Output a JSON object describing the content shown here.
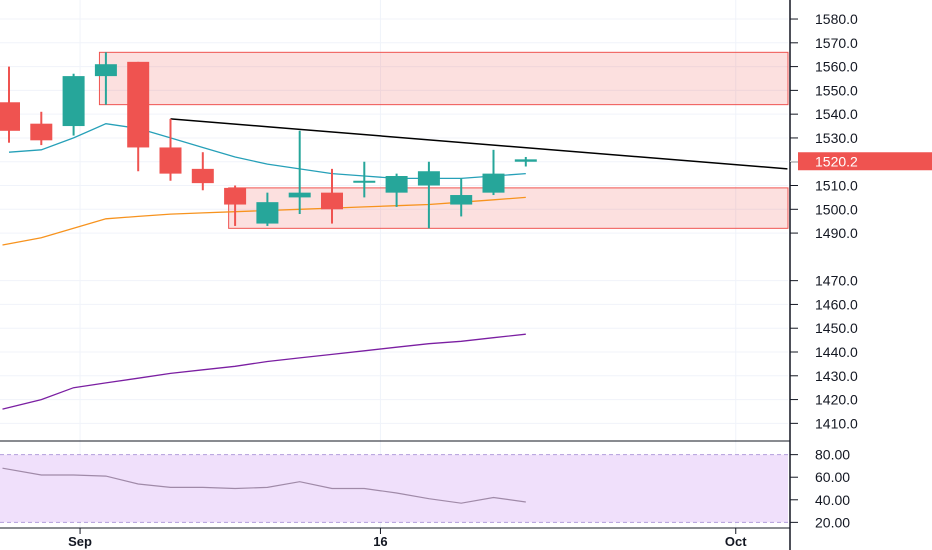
{
  "chart_data": [
    {
      "type": "candlestick",
      "title": "",
      "ylim": [
        1403,
        1588
      ],
      "y_ticks": [
        1410,
        1420,
        1430,
        1440,
        1450,
        1460,
        1470,
        1490,
        1500,
        1510,
        1520,
        1530,
        1540,
        1550,
        1560,
        1570,
        1580
      ],
      "y_tick_labels": [
        "1410.0",
        "1420.0",
        "1430.0",
        "1440.0",
        "1450.0",
        "1460.0",
        "1470.0",
        "1490.0",
        "1500.0",
        "1510.0",
        "1520.0",
        "1530.0",
        "1540.0",
        "1550.0",
        "1560.0",
        "1570.0",
        "1580.0"
      ],
      "x_labels": [
        {
          "slot": 2.2,
          "text": "Sep"
        },
        {
          "slot": 11.5,
          "text": "16"
        },
        {
          "slot": 22.5,
          "text": "Oct"
        }
      ],
      "current_price": {
        "value": 1520.2,
        "label": "1520.2"
      },
      "candles": [
        {
          "o": 1545,
          "h": 1560,
          "l": 1528,
          "c": 1533
        },
        {
          "o": 1536,
          "h": 1541,
          "l": 1527,
          "c": 1529
        },
        {
          "o": 1535,
          "h": 1557,
          "l": 1531,
          "c": 1556
        },
        {
          "o": 1556,
          "h": 1566,
          "l": 1544,
          "c": 1561
        },
        {
          "o": 1562,
          "h": 1562,
          "l": 1516,
          "c": 1526
        },
        {
          "o": 1526,
          "h": 1538,
          "l": 1512,
          "c": 1515
        },
        {
          "o": 1517,
          "h": 1524,
          "l": 1508,
          "c": 1511
        },
        {
          "o": 1509,
          "h": 1510,
          "l": 1493,
          "c": 1502
        },
        {
          "o": 1494,
          "h": 1507,
          "l": 1493,
          "c": 1503
        },
        {
          "o": 1505,
          "h": 1533,
          "l": 1498,
          "c": 1507
        },
        {
          "o": 1507,
          "h": 1517,
          "l": 1494,
          "c": 1500
        },
        {
          "o": 1512,
          "h": 1520,
          "l": 1505,
          "c": 1512
        },
        {
          "o": 1507,
          "h": 1515,
          "l": 1501,
          "c": 1514
        },
        {
          "o": 1510,
          "h": 1520,
          "l": 1492,
          "c": 1516
        },
        {
          "o": 1502,
          "h": 1513,
          "l": 1497,
          "c": 1506
        },
        {
          "o": 1507,
          "h": 1525,
          "l": 1506,
          "c": 1515
        },
        {
          "o": 1520,
          "h": 1522,
          "l": 1518,
          "c": 1521
        }
      ],
      "ma_short": [
        {
          "slot": 0,
          "v": 1524
        },
        {
          "slot": 1,
          "v": 1525
        },
        {
          "slot": 2,
          "v": 1530
        },
        {
          "slot": 3,
          "v": 1536
        },
        {
          "slot": 4,
          "v": 1534
        },
        {
          "slot": 5,
          "v": 1530
        },
        {
          "slot": 6,
          "v": 1526
        },
        {
          "slot": 7,
          "v": 1522
        },
        {
          "slot": 8,
          "v": 1519
        },
        {
          "slot": 9,
          "v": 1517
        },
        {
          "slot": 10,
          "v": 1515
        },
        {
          "slot": 11,
          "v": 1514
        },
        {
          "slot": 12,
          "v": 1513
        },
        {
          "slot": 13,
          "v": 1513
        },
        {
          "slot": 14,
          "v": 1513
        },
        {
          "slot": 15,
          "v": 1514
        },
        {
          "slot": 16,
          "v": 1515
        }
      ],
      "ma_medium": [
        {
          "slot": -0.2,
          "v": 1485
        },
        {
          "slot": 1,
          "v": 1488
        },
        {
          "slot": 2,
          "v": 1492
        },
        {
          "slot": 3,
          "v": 1496
        },
        {
          "slot": 4,
          "v": 1497
        },
        {
          "slot": 5,
          "v": 1498
        },
        {
          "slot": 6,
          "v": 1498.5
        },
        {
          "slot": 7,
          "v": 1499
        },
        {
          "slot": 8,
          "v": 1499.5
        },
        {
          "slot": 9,
          "v": 1500
        },
        {
          "slot": 10,
          "v": 1500.5
        },
        {
          "slot": 11,
          "v": 1501
        },
        {
          "slot": 12,
          "v": 1501.5
        },
        {
          "slot": 13,
          "v": 1502
        },
        {
          "slot": 14,
          "v": 1503
        },
        {
          "slot": 15,
          "v": 1504
        },
        {
          "slot": 16,
          "v": 1505
        }
      ],
      "ma_long": [
        {
          "slot": -0.2,
          "v": 1416
        },
        {
          "slot": 1,
          "v": 1420
        },
        {
          "slot": 2,
          "v": 1425
        },
        {
          "slot": 3,
          "v": 1427
        },
        {
          "slot": 4,
          "v": 1429
        },
        {
          "slot": 5,
          "v": 1431
        },
        {
          "slot": 6,
          "v": 1432.5
        },
        {
          "slot": 7,
          "v": 1434
        },
        {
          "slot": 8,
          "v": 1436
        },
        {
          "slot": 9,
          "v": 1437.5
        },
        {
          "slot": 10,
          "v": 1439
        },
        {
          "slot": 11,
          "v": 1440.5
        },
        {
          "slot": 12,
          "v": 1442
        },
        {
          "slot": 13,
          "v": 1443.5
        },
        {
          "slot": 14,
          "v": 1444.5
        },
        {
          "slot": 15,
          "v": 1446
        },
        {
          "slot": 16,
          "v": 1447.5
        }
      ],
      "zones": [
        {
          "from_slot": 2.8,
          "top": 1566,
          "bottom": 1544
        },
        {
          "from_slot": 6.8,
          "top": 1509,
          "bottom": 1492
        }
      ],
      "trendline": {
        "from_slot": 5,
        "from_v": 1538,
        "to_slot": 24.1,
        "to_v": 1517
      },
      "colors": {
        "up": "#26a69a",
        "down": "#ef5350",
        "ma_short": "#26a0b8",
        "ma_medium": "#f7931e",
        "ma_long": "#7b1fa2",
        "zone": "#ef5350",
        "badge": "#ef5350"
      }
    },
    {
      "type": "line",
      "title": "",
      "ylim": [
        15,
        85
      ],
      "y_ticks": [
        20,
        40,
        60,
        80
      ],
      "y_tick_labels": [
        "20.00",
        "40.00",
        "60.00",
        "80.00"
      ],
      "band": [
        20,
        80
      ],
      "series": [
        {
          "values": [
            {
              "slot": -0.2,
              "v": 68
            },
            {
              "slot": 1,
              "v": 62
            },
            {
              "slot": 2,
              "v": 62
            },
            {
              "slot": 3,
              "v": 61
            },
            {
              "slot": 4,
              "v": 54
            },
            {
              "slot": 5,
              "v": 51
            },
            {
              "slot": 6,
              "v": 51
            },
            {
              "slot": 7,
              "v": 50
            },
            {
              "slot": 8,
              "v": 51
            },
            {
              "slot": 9,
              "v": 56
            },
            {
              "slot": 10,
              "v": 50
            },
            {
              "slot": 11,
              "v": 50
            },
            {
              "slot": 12,
              "v": 46
            },
            {
              "slot": 13,
              "v": 41
            },
            {
              "slot": 14,
              "v": 37
            },
            {
              "slot": 15,
              "v": 42
            },
            {
              "slot": 16,
              "v": 38
            }
          ]
        }
      ],
      "colors": {
        "line": "#a08aa8",
        "band": "#f0e0fb",
        "band_edge": "#b39ddb"
      }
    }
  ]
}
